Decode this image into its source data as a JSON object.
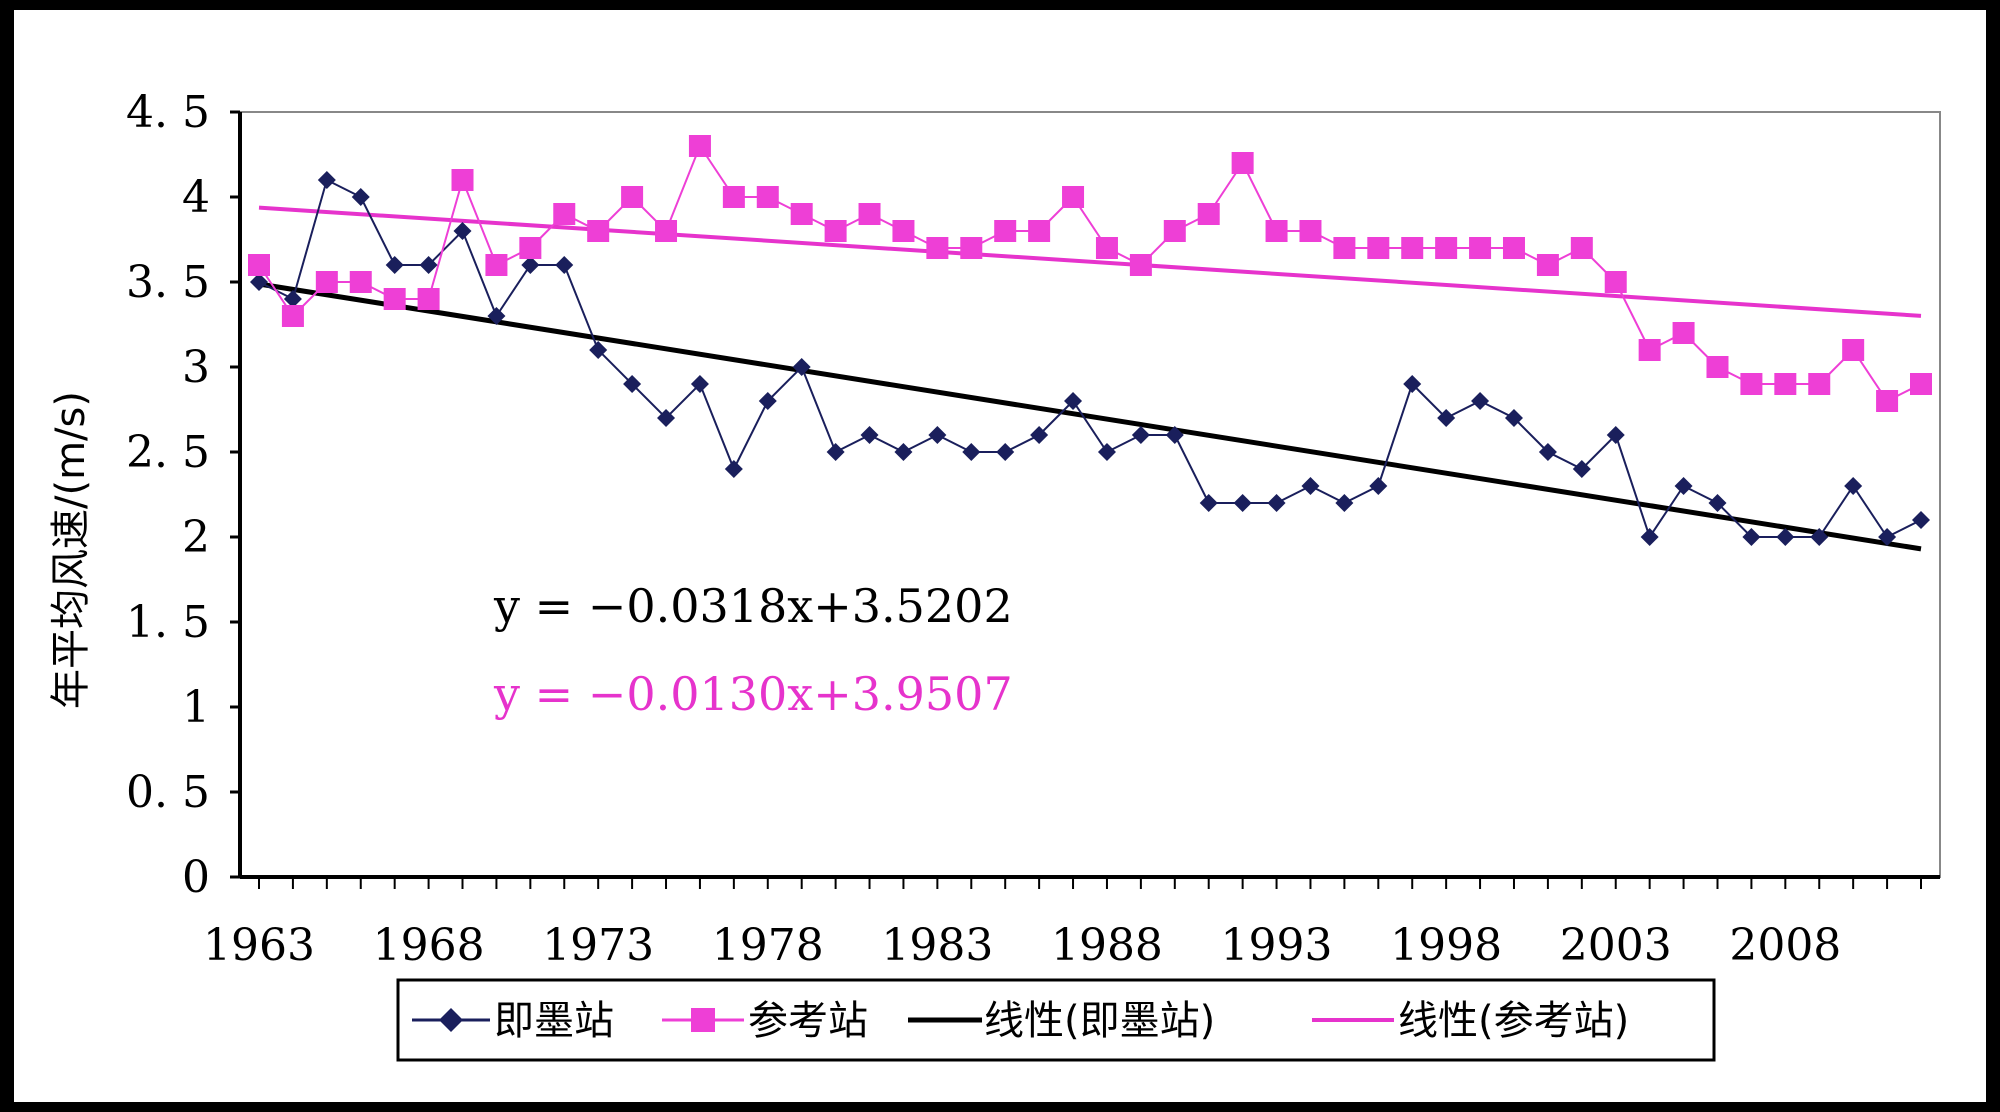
{
  "chart_data": {
    "type": "line",
    "title": "",
    "xlabel": "",
    "ylabel": "年平均风速/(m/s)",
    "xlim": [
      1963,
      2012
    ],
    "ylim": [
      0,
      4.5
    ],
    "ytick_labels": [
      "0",
      "0.5",
      "1",
      "1.5",
      "2",
      "2.5",
      "3",
      "3.5",
      "4",
      "4.5"
    ],
    "xtick_labels": [
      "1963",
      "1968",
      "1973",
      "1978",
      "1983",
      "1988",
      "1993",
      "1998",
      "2003",
      "2008"
    ],
    "grid": false,
    "legend_position": "bottom",
    "x": [
      1963,
      1964,
      1965,
      1966,
      1967,
      1968,
      1969,
      1970,
      1971,
      1972,
      1973,
      1974,
      1975,
      1976,
      1977,
      1978,
      1979,
      1980,
      1981,
      1982,
      1983,
      1984,
      1985,
      1986,
      1987,
      1988,
      1989,
      1990,
      1991,
      1992,
      1993,
      1994,
      1995,
      1996,
      1997,
      1998,
      1999,
      2000,
      2001,
      2002,
      2003,
      2004,
      2005,
      2006,
      2007,
      2008,
      2009,
      2010,
      2011,
      2012
    ],
    "series": [
      {
        "name": "即墨站",
        "color": "#1a1f5c",
        "marker": "diamond",
        "values": [
          3.5,
          3.4,
          4.1,
          4.0,
          3.6,
          3.6,
          3.8,
          3.3,
          3.6,
          3.6,
          3.1,
          2.9,
          2.7,
          2.9,
          2.4,
          2.8,
          3.0,
          2.5,
          2.6,
          2.5,
          2.6,
          2.5,
          2.5,
          2.6,
          2.8,
          2.5,
          2.6,
          2.6,
          2.2,
          2.2,
          2.2,
          2.3,
          2.2,
          2.3,
          2.9,
          2.7,
          2.8,
          2.7,
          2.5,
          2.4,
          2.6,
          2.0,
          2.3,
          2.2,
          2.0,
          2.0,
          2.0,
          2.3,
          2.0,
          2.1
        ]
      },
      {
        "name": "参考站",
        "color": "#ee3fd6",
        "marker": "square",
        "values": [
          3.6,
          3.3,
          3.5,
          3.5,
          3.4,
          3.4,
          4.1,
          3.6,
          3.7,
          3.9,
          3.8,
          4.0,
          3.8,
          4.3,
          4.0,
          4.0,
          3.9,
          3.8,
          3.9,
          3.8,
          3.7,
          3.7,
          3.8,
          3.8,
          4.0,
          3.7,
          3.6,
          3.8,
          3.9,
          4.2,
          3.8,
          3.8,
          3.7,
          3.7,
          3.7,
          3.7,
          3.7,
          3.7,
          3.6,
          3.7,
          3.5,
          3.1,
          3.2,
          3.0,
          2.9,
          2.9,
          2.9,
          3.1,
          2.8,
          2.9
        ]
      }
    ],
    "trendlines": [
      {
        "name": "线性(即墨站)",
        "color": "#000000",
        "slope": -0.0318,
        "intercept": 3.5202
      },
      {
        "name": "线性(参考站)",
        "color": "#e633cc",
        "slope": -0.013,
        "intercept": 3.9507
      }
    ],
    "annotations": [
      {
        "text": "y = −0.0318x+3.5202",
        "color": "#000000"
      },
      {
        "text": "y = −0.0130x+3.9507",
        "color": "#e633cc"
      }
    ]
  }
}
